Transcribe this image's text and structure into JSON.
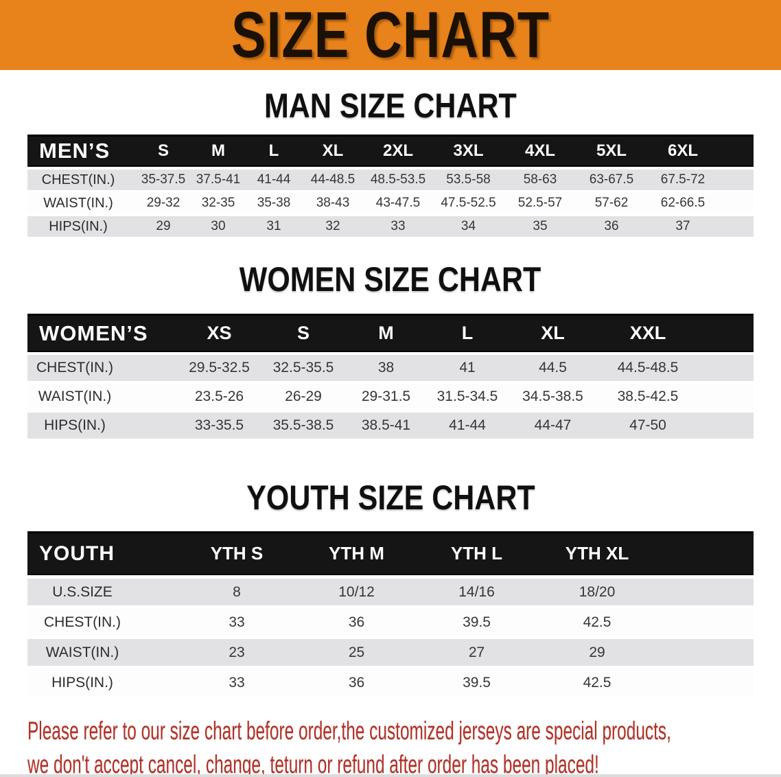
{
  "banner": {
    "title": "SIZE CHART",
    "bg_color": "#e8821a",
    "text_color": "#1a1006"
  },
  "colors": {
    "header_bar": "#151515",
    "stripe_row": "#e2e2e4",
    "footer_text": "#b23228"
  },
  "men": {
    "heading": "MAN SIZE CHART",
    "label": "MEN’S",
    "columns": [
      "S",
      "M",
      "L",
      "XL",
      "2XL",
      "3XL",
      "4XL",
      "5XL",
      "6XL"
    ],
    "rows": [
      {
        "label": "CHEST(IN.)",
        "values": [
          "35-37.5",
          "37.5-41",
          "41-44",
          "44-48.5",
          "48.5-53.5",
          "53.5-58",
          "58-63",
          "63-67.5",
          "67.5-72"
        ]
      },
      {
        "label": "WAIST(IN.)",
        "values": [
          "29-32",
          "32-35",
          "35-38",
          "38-43",
          "43-47.5",
          "47.5-52.5",
          "52.5-57",
          "57-62",
          "62-66.5"
        ]
      },
      {
        "label": "HIPS(IN.)",
        "values": [
          "29",
          "30",
          "31",
          "32",
          "33",
          "34",
          "35",
          "36",
          "37"
        ]
      }
    ]
  },
  "women": {
    "heading": "WOMEN SIZE CHART",
    "label": "WOMEN’S",
    "columns": [
      "XS",
      "S",
      "M",
      "L",
      "XL",
      "XXL"
    ],
    "rows": [
      {
        "label": "CHEST(IN.)",
        "values": [
          "29.5-32.5",
          "32.5-35.5",
          "38",
          "41",
          "44.5",
          "44.5-48.5"
        ]
      },
      {
        "label": "WAIST(IN.)",
        "values": [
          "23.5-26",
          "26-29",
          "29-31.5",
          "31.5-34.5",
          "34.5-38.5",
          "38.5-42.5"
        ]
      },
      {
        "label": "HIPS(IN.)",
        "values": [
          "33-35.5",
          "35.5-38.5",
          "38.5-41",
          "41-44",
          "44-47",
          "47-50"
        ]
      }
    ]
  },
  "youth": {
    "heading": "YOUTH SIZE CHART",
    "label": "YOUTH",
    "columns": [
      "YTH S",
      "YTH M",
      "YTH L",
      "YTH XL"
    ],
    "rows": [
      {
        "label": "U.S.SIZE",
        "values": [
          "8",
          "10/12",
          "14/16",
          "18/20"
        ]
      },
      {
        "label": "CHEST(IN.)",
        "values": [
          "33",
          "36",
          "39.5",
          "42.5"
        ]
      },
      {
        "label": "WAIST(IN.)",
        "values": [
          "23",
          "25",
          "27",
          "29"
        ]
      },
      {
        "label": "HIPS(IN.)",
        "values": [
          "33",
          "36",
          "39.5",
          "42.5"
        ]
      }
    ]
  },
  "footer": {
    "line1": "Please refer to our size chart before order,the customized jerseys are special products,",
    "line2": "we don't accept cancel, change, teturn or refund after order has been placed!"
  }
}
